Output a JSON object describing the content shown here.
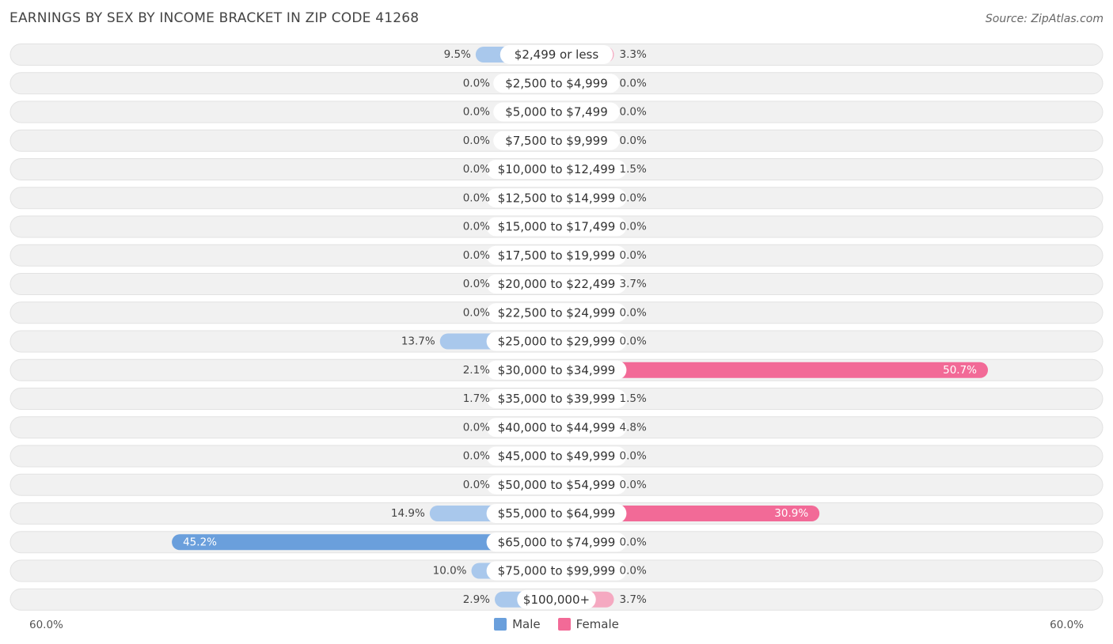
{
  "title": "EARNINGS BY SEX BY INCOME BRACKET IN ZIP CODE 41268",
  "source": "Source: ZipAtlas.com",
  "colors": {
    "male_light": "#a9c8ec",
    "male_dark": "#6a9fdc",
    "female_light": "#f5a9c1",
    "female_dark": "#f26a97",
    "row_bg": "#f1f1f1",
    "row_border": "#e2e2e2"
  },
  "legend": {
    "male": "Male",
    "female": "Female"
  },
  "axis": {
    "left_label": "60.0%",
    "right_label": "60.0%"
  },
  "chart_data": {
    "type": "bar",
    "orientation": "horizontal-diverging",
    "title": "EARNINGS BY SEX BY INCOME BRACKET IN ZIP CODE 41268",
    "xlim": [
      -60,
      60
    ],
    "categories": [
      "$2,499 or less",
      "$2,500 to $4,999",
      "$5,000 to $7,499",
      "$7,500 to $9,999",
      "$10,000 to $12,499",
      "$12,500 to $14,999",
      "$15,000 to $17,499",
      "$17,500 to $19,999",
      "$20,000 to $22,499",
      "$22,500 to $24,999",
      "$25,000 to $29,999",
      "$30,000 to $34,999",
      "$35,000 to $39,999",
      "$40,000 to $44,999",
      "$45,000 to $49,999",
      "$50,000 to $54,999",
      "$55,000 to $64,999",
      "$65,000 to $74,999",
      "$75,000 to $99,999",
      "$100,000+"
    ],
    "series": [
      {
        "name": "Male",
        "values": [
          9.5,
          0.0,
          0.0,
          0.0,
          0.0,
          0.0,
          0.0,
          0.0,
          0.0,
          0.0,
          13.7,
          2.1,
          1.7,
          0.0,
          0.0,
          0.0,
          14.9,
          45.2,
          10.0,
          2.9
        ],
        "labels": [
          "9.5%",
          "0.0%",
          "0.0%",
          "0.0%",
          "0.0%",
          "0.0%",
          "0.0%",
          "0.0%",
          "0.0%",
          "0.0%",
          "13.7%",
          "2.1%",
          "1.7%",
          "0.0%",
          "0.0%",
          "0.0%",
          "14.9%",
          "45.2%",
          "10.0%",
          "2.9%"
        ]
      },
      {
        "name": "Female",
        "values": [
          3.3,
          0.0,
          0.0,
          0.0,
          1.5,
          0.0,
          0.0,
          0.0,
          3.7,
          0.0,
          0.0,
          50.7,
          1.5,
          4.8,
          0.0,
          0.0,
          30.9,
          0.0,
          0.0,
          3.7
        ],
        "labels": [
          "3.3%",
          "0.0%",
          "0.0%",
          "0.0%",
          "1.5%",
          "0.0%",
          "0.0%",
          "0.0%",
          "3.7%",
          "0.0%",
          "0.0%",
          "50.7%",
          "1.5%",
          "4.8%",
          "0.0%",
          "0.0%",
          "30.9%",
          "0.0%",
          "0.0%",
          "3.7%"
        ]
      }
    ]
  }
}
